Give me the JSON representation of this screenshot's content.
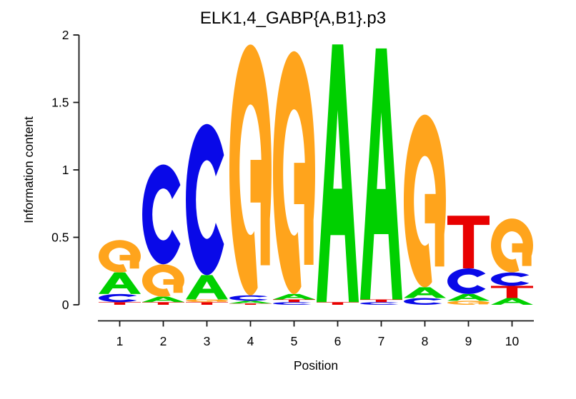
{
  "chart_data": {
    "type": "sequence-logo",
    "title": "ELK1,4_GABP{A,B1}.p3",
    "xlabel": "Position",
    "ylabel": "Information content",
    "ylim": [
      0,
      2
    ],
    "yticks": [
      0,
      0.5,
      1,
      1.5,
      2
    ],
    "ytick_labels": [
      "0",
      "0.5",
      "1",
      "1.5",
      "2"
    ],
    "positions": [
      1,
      2,
      3,
      4,
      5,
      6,
      7,
      8,
      9,
      10
    ],
    "grid": false,
    "legend": null,
    "stacks": [
      [
        {
          "letter": "T",
          "bits": 0.02
        },
        {
          "letter": "C",
          "bits": 0.06
        },
        {
          "letter": "A",
          "bits": 0.16
        },
        {
          "letter": "G",
          "bits": 0.24
        }
      ],
      [
        {
          "letter": "T",
          "bits": 0.02
        },
        {
          "letter": "A",
          "bits": 0.04
        },
        {
          "letter": "G",
          "bits": 0.24
        },
        {
          "letter": "C",
          "bits": 0.74
        }
      ],
      [
        {
          "letter": "T",
          "bits": 0.02
        },
        {
          "letter": "G",
          "bits": 0.02
        },
        {
          "letter": "A",
          "bits": 0.18
        },
        {
          "letter": "C",
          "bits": 1.12
        }
      ],
      [
        {
          "letter": "T",
          "bits": 0.01
        },
        {
          "letter": "A",
          "bits": 0.02
        },
        {
          "letter": "C",
          "bits": 0.04
        },
        {
          "letter": "G",
          "bits": 1.86
        }
      ],
      [
        {
          "letter": "C",
          "bits": 0.02
        },
        {
          "letter": "T",
          "bits": 0.02
        },
        {
          "letter": "A",
          "bits": 0.04
        },
        {
          "letter": "G",
          "bits": 1.8
        }
      ],
      [
        {
          "letter": "T",
          "bits": 0.02
        },
        {
          "letter": "A",
          "bits": 1.91
        }
      ],
      [
        {
          "letter": "C",
          "bits": 0.02
        },
        {
          "letter": "T",
          "bits": 0.02
        },
        {
          "letter": "A",
          "bits": 1.86
        }
      ],
      [
        {
          "letter": "C",
          "bits": 0.05
        },
        {
          "letter": "A",
          "bits": 0.08
        },
        {
          "letter": "G",
          "bits": 1.28
        }
      ],
      [
        {
          "letter": "G",
          "bits": 0.03
        },
        {
          "letter": "A",
          "bits": 0.05
        },
        {
          "letter": "C",
          "bits": 0.19
        },
        {
          "letter": "T",
          "bits": 0.39
        }
      ],
      [
        {
          "letter": "A",
          "bits": 0.05
        },
        {
          "letter": "T",
          "bits": 0.09
        },
        {
          "letter": "C",
          "bits": 0.1
        },
        {
          "letter": "G",
          "bits": 0.4
        }
      ]
    ]
  },
  "colors": {
    "A": "#00d000",
    "C": "#0909e8",
    "G": "#ffa41c",
    "T": "#e80000",
    "axis": "#161616",
    "background": "#ffffff"
  }
}
